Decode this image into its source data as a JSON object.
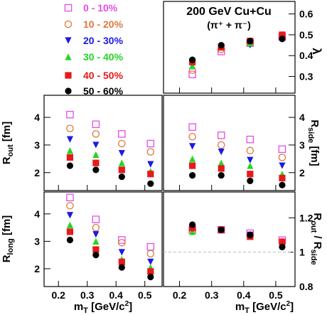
{
  "colors": {
    "0 - 10%": "#e64ce6",
    "10 - 20%": "#e0783c",
    "20 - 30%": "#1a1ae6",
    "30 - 40%": "#22d622",
    "40 - 50%": "#e61a1a",
    "50 - 60%": "#000000"
  },
  "chart_data": {
    "type": "scatter",
    "title": "200 GeV Cu+Cu",
    "subtitle": "(π⁺ + π⁻)",
    "xlabel": "m_T [GeV/c²]",
    "xlim": [
      0.15,
      0.56
    ],
    "legend": {
      "placement": "top-left",
      "entries": [
        {
          "name": "0 - 10%",
          "marker": "open-square"
        },
        {
          "name": "10 - 20%",
          "marker": "open-circle"
        },
        {
          "name": "20 - 30%",
          "marker": "down-triangle"
        },
        {
          "name": "30 - 40%",
          "marker": "up-triangle"
        },
        {
          "name": "40 - 50%",
          "marker": "filled-square"
        },
        {
          "name": "50 - 60%",
          "marker": "filled-circle"
        }
      ]
    },
    "x": [
      0.24,
      0.33,
      0.42,
      0.52
    ],
    "x_ticks": [
      "0.2",
      "0.3",
      "0.4",
      "0.5"
    ],
    "panels": [
      {
        "id": "lambda",
        "ylabel": "λ",
        "ylim": [
          0.22,
          0.66
        ],
        "y_ticks": [
          "0.3",
          "0.4",
          "0.5",
          "0.6"
        ],
        "series": [
          {
            "name": "0 - 10%",
            "values": [
              0.31,
              0.42,
              0.46,
              0.49
            ]
          },
          {
            "name": "10 - 20%",
            "values": [
              0.33,
              0.43,
              0.46,
              0.49
            ]
          },
          {
            "name": "20 - 30%",
            "values": [
              0.35,
              0.44,
              0.45,
              0.49
            ]
          },
          {
            "name": "30 - 40%",
            "values": [
              0.35,
              0.44,
              0.46,
              0.49
            ]
          },
          {
            "name": "40 - 50%",
            "values": [
              0.37,
              0.44,
              0.47,
              0.5
            ]
          },
          {
            "name": "50 - 60%",
            "values": [
              0.38,
              0.45,
              0.47,
              0.48
            ]
          }
        ]
      },
      {
        "id": "rout",
        "ylabel": "R_out [fm]",
        "ylim": [
          1.35,
          4.8
        ],
        "y_ticks": [
          "2",
          "3",
          "4"
        ],
        "series": [
          {
            "name": "0 - 10%",
            "values": [
              4.1,
              3.75,
              3.4,
              3.05
            ]
          },
          {
            "name": "10 - 20%",
            "values": [
              3.6,
              3.4,
              3.05,
              2.75
            ]
          },
          {
            "name": "20 - 30%",
            "values": [
              3.2,
              3.0,
              2.7,
              2.3
            ]
          },
          {
            "name": "30 - 40%",
            "values": [
              2.8,
              2.65,
              2.35,
              2.05
            ]
          },
          {
            "name": "40 - 50%",
            "values": [
              2.55,
              2.35,
              2.1,
              1.95
            ]
          },
          {
            "name": "50 - 60%",
            "values": [
              2.25,
              2.1,
              1.85,
              1.6
            ]
          }
        ]
      },
      {
        "id": "rside",
        "ylabel": "R_side [fm]",
        "ylim": [
          1.35,
          4.8
        ],
        "y_ticks": [
          "2",
          "3",
          "4"
        ],
        "series": [
          {
            "name": "0 - 10%",
            "values": [
              3.65,
              3.35,
              3.2,
              2.85
            ]
          },
          {
            "name": "10 - 20%",
            "values": [
              3.3,
              3.0,
              2.8,
              2.55
            ]
          },
          {
            "name": "20 - 30%",
            "values": [
              2.95,
              2.75,
              2.45,
              2.25
            ]
          },
          {
            "name": "30 - 40%",
            "values": [
              2.5,
              2.35,
              2.25,
              1.95
            ]
          },
          {
            "name": "40 - 50%",
            "values": [
              2.25,
              2.15,
              1.95,
              1.8
            ]
          },
          {
            "name": "50 - 60%",
            "values": [
              1.9,
              1.9,
              1.7,
              1.55
            ]
          }
        ]
      },
      {
        "id": "rlong",
        "ylabel": "R_long [fm]",
        "ylim": [
          1.35,
          4.8
        ],
        "y_ticks": [
          "2",
          "3",
          "4"
        ],
        "series": [
          {
            "name": "0 - 10%",
            "values": [
              4.6,
              3.8,
              3.05,
              2.8
            ]
          },
          {
            "name": "10 - 20%",
            "values": [
              4.3,
              3.5,
              2.95,
              2.55
            ]
          },
          {
            "name": "20 - 30%",
            "values": [
              3.95,
              3.25,
              2.6,
              2.25
            ]
          },
          {
            "name": "30 - 40%",
            "values": [
              3.6,
              3.0,
              2.35,
              2.05
            ]
          },
          {
            "name": "40 - 50%",
            "values": [
              3.35,
              2.7,
              2.25,
              1.9
            ]
          },
          {
            "name": "50 - 60%",
            "values": [
              3.05,
              2.5,
              2.05,
              1.7
            ]
          }
        ]
      },
      {
        "id": "ratio",
        "ylabel": "R_out / R_side",
        "ylim": [
          0.8,
          1.35
        ],
        "y_ticks": [
          "0.8",
          "1",
          "1.2"
        ],
        "reference_line": 1.0,
        "series": [
          {
            "name": "0 - 10%",
            "values": [
              1.13,
              1.13,
              1.11,
              1.07
            ]
          },
          {
            "name": "10 - 20%",
            "values": [
              1.12,
              1.13,
              1.1,
              1.06
            ]
          },
          {
            "name": "20 - 30%",
            "values": [
              1.12,
              1.13,
              1.1,
              1.05
            ]
          },
          {
            "name": "30 - 40%",
            "values": [
              1.12,
              1.13,
              1.09,
              1.05
            ]
          },
          {
            "name": "40 - 50%",
            "values": [
              1.14,
              1.13,
              1.09,
              1.06
            ]
          },
          {
            "name": "50 - 60%",
            "values": [
              1.16,
              1.13,
              1.1,
              1.03
            ]
          }
        ]
      }
    ]
  }
}
